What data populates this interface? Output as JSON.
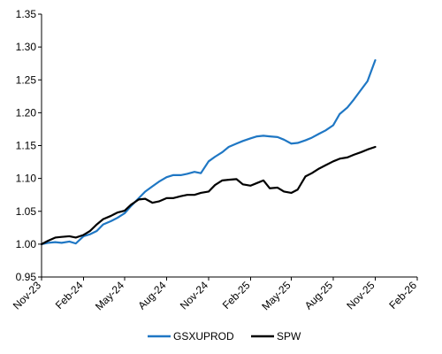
{
  "chart_data": {
    "type": "line",
    "title": "",
    "xlabel": "",
    "ylabel": "",
    "ylim": [
      0.95,
      1.35
    ],
    "yticks": [
      "0.95",
      "1.00",
      "1.05",
      "1.10",
      "1.15",
      "1.20",
      "1.25",
      "1.30",
      "1.35"
    ],
    "xlim": [
      "2023-11-01",
      "2026-02-01"
    ],
    "xticks": [
      {
        "date": "2023-11-01",
        "label": "Nov-23"
      },
      {
        "date": "2024-02-01",
        "label": "Feb-24"
      },
      {
        "date": "2024-05-01",
        "label": "May-24"
      },
      {
        "date": "2024-08-01",
        "label": "Aug-24"
      },
      {
        "date": "2024-11-01",
        "label": "Nov-24"
      },
      {
        "date": "2025-02-01",
        "label": "Feb-25"
      },
      {
        "date": "2025-05-01",
        "label": "May-25"
      },
      {
        "date": "2025-08-01",
        "label": "Aug-25"
      },
      {
        "date": "2025-11-01",
        "label": "Nov-25"
      },
      {
        "date": "2026-02-01",
        "label": "Feb-26"
      }
    ],
    "grid": false,
    "legend": "bottom",
    "x": [
      "2023-11-01",
      "2023-11-15",
      "2023-12-01",
      "2023-12-15",
      "2024-01-01",
      "2024-01-15",
      "2024-02-01",
      "2024-02-15",
      "2024-03-01",
      "2024-03-15",
      "2024-04-01",
      "2024-04-15",
      "2024-05-01",
      "2024-05-15",
      "2024-06-01",
      "2024-06-15",
      "2024-07-01",
      "2024-07-15",
      "2024-08-01",
      "2024-08-15",
      "2024-09-01",
      "2024-09-15",
      "2024-10-01",
      "2024-10-15",
      "2024-11-01",
      "2024-11-15",
      "2024-12-01",
      "2024-12-15",
      "2025-01-01",
      "2025-01-15",
      "2025-02-01",
      "2025-02-15",
      "2025-03-01",
      "2025-03-15",
      "2025-04-01",
      "2025-04-15",
      "2025-05-01",
      "2025-05-15",
      "2025-06-01",
      "2025-06-15",
      "2025-07-01",
      "2025-07-15",
      "2025-08-01",
      "2025-08-15",
      "2025-09-01",
      "2025-09-15",
      "2025-10-01",
      "2025-10-15",
      "2025-11-01"
    ],
    "series": [
      {
        "name": "GSXUPROD",
        "color": "#1f77c4",
        "values": [
          1.0,
          1.002,
          1.003,
          1.002,
          1.004,
          1.001,
          1.012,
          1.015,
          1.02,
          1.03,
          1.035,
          1.04,
          1.047,
          1.058,
          1.07,
          1.08,
          1.088,
          1.095,
          1.102,
          1.105,
          1.105,
          1.107,
          1.11,
          1.108,
          1.126,
          1.133,
          1.14,
          1.148,
          1.153,
          1.157,
          1.161,
          1.164,
          1.165,
          1.164,
          1.163,
          1.159,
          1.153,
          1.154,
          1.158,
          1.162,
          1.168,
          1.173,
          1.181,
          1.198,
          1.208,
          1.22,
          1.235,
          1.248,
          1.28
        ]
      },
      {
        "name": "SPW",
        "color": "#000000",
        "values": [
          1.0,
          1.005,
          1.01,
          1.011,
          1.012,
          1.01,
          1.014,
          1.02,
          1.03,
          1.038,
          1.043,
          1.048,
          1.051,
          1.06,
          1.068,
          1.069,
          1.063,
          1.065,
          1.07,
          1.07,
          1.073,
          1.075,
          1.075,
          1.078,
          1.08,
          1.09,
          1.097,
          1.098,
          1.099,
          1.091,
          1.089,
          1.093,
          1.097,
          1.085,
          1.086,
          1.08,
          1.078,
          1.083,
          1.103,
          1.108,
          1.115,
          1.12,
          1.126,
          1.13,
          1.132,
          1.136,
          1.14,
          1.144,
          1.148
        ]
      }
    ]
  }
}
